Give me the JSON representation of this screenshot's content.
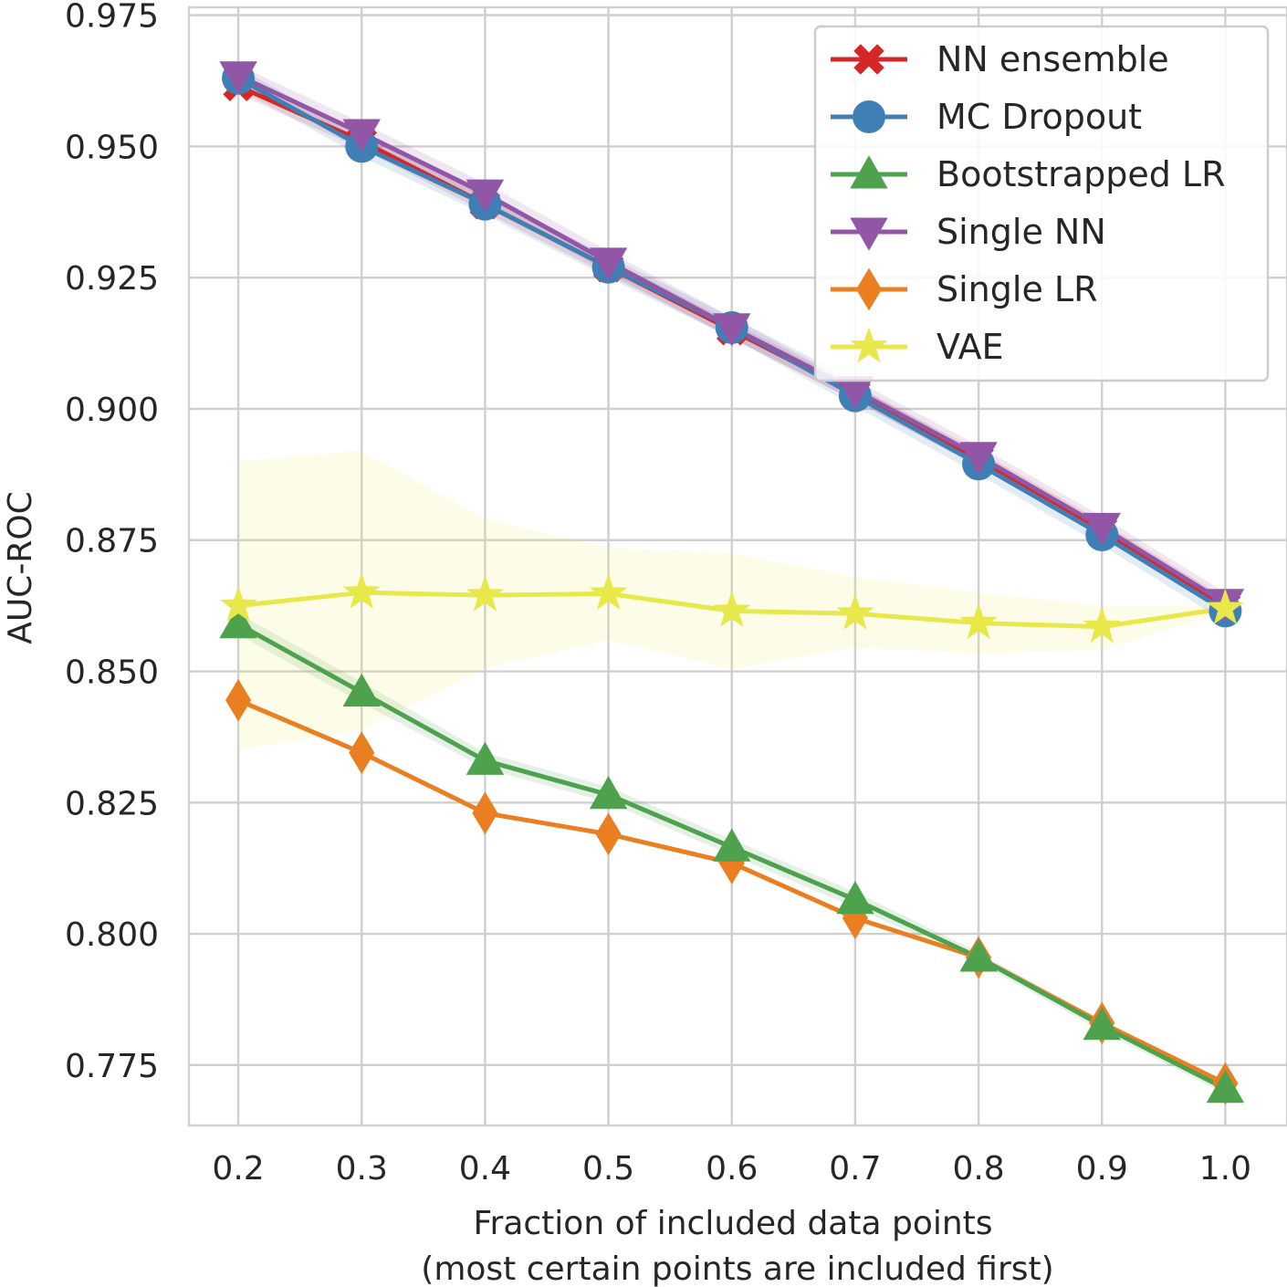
{
  "chart_data": {
    "type": "line",
    "title": "",
    "xlabel": "Fraction of included data points",
    "xlabel_sub": "(most certain points are included first)",
    "ylabel": "AUC-ROC",
    "xlim": [
      0.16,
      1.05
    ],
    "ylim": [
      0.7635,
      0.9765
    ],
    "x": [
      0.2,
      0.3,
      0.4,
      0.5,
      0.6,
      0.7,
      0.8,
      0.9,
      1.0
    ],
    "x_tick_labels": [
      "0.2",
      "0.3",
      "0.4",
      "0.5",
      "0.6",
      "0.7",
      "0.8",
      "0.9",
      "1.0"
    ],
    "y_ticks": [
      0.775,
      0.8,
      0.825,
      0.85,
      0.875,
      0.9,
      0.925,
      0.95,
      0.975
    ],
    "y_tick_labels": [
      "0.775",
      "0.800",
      "0.825",
      "0.850",
      "0.875",
      "0.900",
      "0.925",
      "0.950",
      "0.975"
    ],
    "grid": true,
    "legend_position": "top-right",
    "series": [
      {
        "name": "NN ensemble",
        "color": "#d62728",
        "marker": "x",
        "values": [
          0.9615,
          0.951,
          0.939,
          0.927,
          0.915,
          0.903,
          0.8905,
          0.877,
          0.8625
        ],
        "band_low": [
          0.96,
          0.9495,
          0.9375,
          0.9255,
          0.9135,
          0.9015,
          0.889,
          0.8755,
          0.861
        ],
        "band_high": [
          0.963,
          0.9525,
          0.9405,
          0.9285,
          0.9165,
          0.9045,
          0.892,
          0.8785,
          0.864
        ]
      },
      {
        "name": "MC Dropout",
        "color": "#3f7fb6",
        "marker": "circle",
        "values": [
          0.963,
          0.95,
          0.939,
          0.927,
          0.9155,
          0.9025,
          0.8895,
          0.876,
          0.8615
        ],
        "band_low": [
          0.961,
          0.948,
          0.937,
          0.925,
          0.9135,
          0.9005,
          0.8875,
          0.874,
          0.8595
        ],
        "band_high": [
          0.965,
          0.952,
          0.941,
          0.929,
          0.9175,
          0.9045,
          0.8915,
          0.878,
          0.8635
        ]
      },
      {
        "name": "Bootstrapped LR",
        "color": "#4ea24e",
        "marker": "triangle-up",
        "values": [
          0.859,
          0.846,
          0.833,
          0.8265,
          0.8165,
          0.8065,
          0.7955,
          0.7825,
          0.7705
        ],
        "band_low": [
          0.857,
          0.844,
          0.8315,
          0.825,
          0.815,
          0.805,
          0.7945,
          0.7815,
          0.7695
        ],
        "band_high": [
          0.861,
          0.848,
          0.8345,
          0.828,
          0.818,
          0.808,
          0.7965,
          0.7835,
          0.7715
        ]
      },
      {
        "name": "Single NN",
        "color": "#9256a7",
        "marker": "triangle-down",
        "values": [
          0.9635,
          0.9525,
          0.941,
          0.928,
          0.9155,
          0.9035,
          0.891,
          0.8775,
          0.863
        ],
        "band_low": [
          0.9615,
          0.9505,
          0.939,
          0.926,
          0.9135,
          0.9015,
          0.889,
          0.8755,
          0.861
        ],
        "band_high": [
          0.9655,
          0.9545,
          0.943,
          0.93,
          0.9175,
          0.9055,
          0.893,
          0.8795,
          0.865
        ]
      },
      {
        "name": "Single LR",
        "color": "#ea7f22",
        "marker": "diamond",
        "values": [
          0.8445,
          0.8345,
          0.823,
          0.819,
          0.8135,
          0.803,
          0.7955,
          0.783,
          0.7715
        ]
      },
      {
        "name": "VAE",
        "color": "#e8e84a",
        "marker": "star",
        "values": [
          0.8625,
          0.865,
          0.8645,
          0.8648,
          0.8615,
          0.861,
          0.8592,
          0.8585,
          0.862
        ],
        "band_low": [
          0.835,
          0.839,
          0.8505,
          0.856,
          0.8505,
          0.8545,
          0.8535,
          0.854,
          0.8615
        ],
        "band_high": [
          0.89,
          0.892,
          0.879,
          0.8735,
          0.8725,
          0.868,
          0.865,
          0.8625,
          0.8625
        ]
      }
    ]
  }
}
